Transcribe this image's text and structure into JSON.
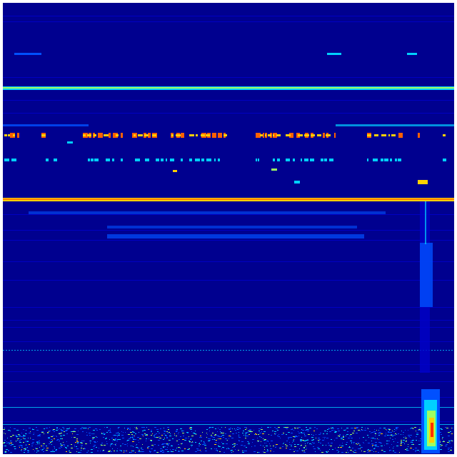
{
  "view": {
    "type": "spectrogram-heatmap",
    "colormap": "jet",
    "colors": {
      "background": "#00008f",
      "low": "#0000c8",
      "mid_low": "#0050ff",
      "mid": "#00d0ff",
      "mid_high": "#a0ff60",
      "high": "#ffd000",
      "peak": "#ff3000",
      "frame": "#ffffff"
    }
  }
}
